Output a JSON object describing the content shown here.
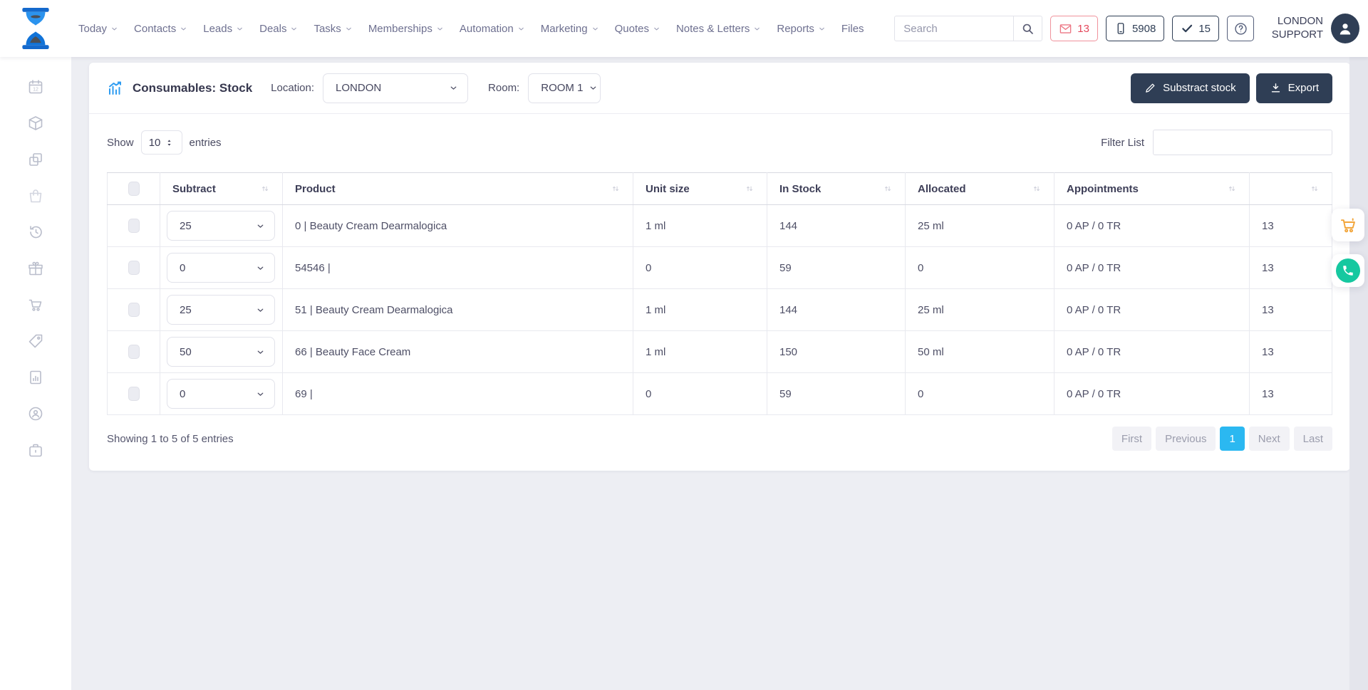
{
  "header": {
    "nav_items": [
      {
        "label": "Today",
        "chevron": true
      },
      {
        "label": "Contacts",
        "chevron": true
      },
      {
        "label": "Leads",
        "chevron": true
      },
      {
        "label": "Deals",
        "chevron": true
      },
      {
        "label": "Tasks",
        "chevron": true
      },
      {
        "label": "Memberships",
        "chevron": true
      },
      {
        "label": "Automation",
        "chevron": true
      },
      {
        "label": "Marketing",
        "chevron": true
      },
      {
        "label": "Quotes",
        "chevron": true
      },
      {
        "label": "Notes & Letters",
        "chevron": true
      },
      {
        "label": "Reports",
        "chevron": true
      },
      {
        "label": "Files",
        "chevron": false
      }
    ],
    "search": {
      "placeholder": "Search"
    },
    "badges": {
      "messages_count": "13",
      "calls_count": "5908",
      "tasks_count": "15"
    },
    "user": {
      "name": "LONDON SUPPORT"
    }
  },
  "sidebar": {
    "items": [
      {
        "icon": "calendar-icon"
      },
      {
        "icon": "box-icon"
      },
      {
        "icon": "copy-icon"
      },
      {
        "icon": "shopping-bag-icon",
        "dim": true
      },
      {
        "icon": "history-icon"
      },
      {
        "icon": "gift-icon"
      },
      {
        "icon": "cart-icon"
      },
      {
        "icon": "price-tag-icon"
      },
      {
        "icon": "report-icon"
      },
      {
        "icon": "support-icon"
      },
      {
        "icon": "briefcase-icon"
      }
    ]
  },
  "panel": {
    "title": "Consumables: Stock",
    "location_label": "Location:",
    "location_value": "LONDON",
    "room_label": "Room:",
    "room_value": "ROOM 1",
    "subtract_button": "Substract stock",
    "export_button": "Export"
  },
  "table_controls": {
    "show_label": "Show",
    "entries_label": "entries",
    "show_value": "10",
    "filter_label": "Filter List",
    "filter_value": ""
  },
  "table": {
    "columns": [
      {
        "label": "Subtract",
        "sortable": true
      },
      {
        "label": "Product",
        "sortable": true
      },
      {
        "label": "Unit size",
        "sortable": true
      },
      {
        "label": "In Stock",
        "sortable": true
      },
      {
        "label": "Allocated",
        "sortable": true
      },
      {
        "label": "Appointments",
        "sortable": true
      },
      {
        "label": "",
        "sortable": true
      }
    ],
    "rows": [
      {
        "subtract": "25",
        "product": "0 | Beauty Cream Dearmalogica",
        "unit_size": "1 ml",
        "in_stock": "144",
        "allocated": "25 ml",
        "appointments": "0 AP / 0 TR",
        "count": "13"
      },
      {
        "subtract": "0",
        "product": "54546 |",
        "unit_size": "0",
        "in_stock": "59",
        "allocated": "0",
        "appointments": "0 AP / 0 TR",
        "count": "13"
      },
      {
        "subtract": "25",
        "product": "51 | Beauty Cream Dearmalogica",
        "unit_size": "1 ml",
        "in_stock": "144",
        "allocated": "25 ml",
        "appointments": "0 AP / 0 TR",
        "count": "13"
      },
      {
        "subtract": "50",
        "product": "66 | Beauty Face Cream",
        "unit_size": "1 ml",
        "in_stock": "150",
        "allocated": "50 ml",
        "appointments": "0 AP / 0 TR",
        "count": "13"
      },
      {
        "subtract": "0",
        "product": "69 |",
        "unit_size": "0",
        "in_stock": "59",
        "allocated": "0",
        "appointments": "0 AP / 0 TR",
        "count": "13"
      }
    ]
  },
  "pagination": {
    "summary": "Showing 1 to 5 of 5 entries",
    "buttons": [
      {
        "label": "First",
        "active": false
      },
      {
        "label": "Previous",
        "active": false
      },
      {
        "label": "1",
        "active": true
      },
      {
        "label": "Next",
        "active": false
      },
      {
        "label": "Last",
        "active": false
      }
    ]
  },
  "icons": {
    "logo": "hourglass-logo",
    "panel_title": "chart-icon",
    "subtract_button": "pencil-icon",
    "export_button": "download-icon",
    "messages_badge": "envelope-icon",
    "calls_badge": "mobile-icon",
    "tasks_badge": "check-icon",
    "help_button": "question-icon",
    "floating": [
      "cart-icon",
      "phone-icon"
    ]
  },
  "colors": {
    "accent_blue": "#2e9cf1",
    "navy": "#2f3e55",
    "alert_red": "#e4485c",
    "badge_red_border": "#f0929c",
    "pagination_active": "#2bb8f1",
    "cart_orange": "#f2a53a",
    "phone_green": "#16c8a0",
    "background": "#edeef3"
  }
}
